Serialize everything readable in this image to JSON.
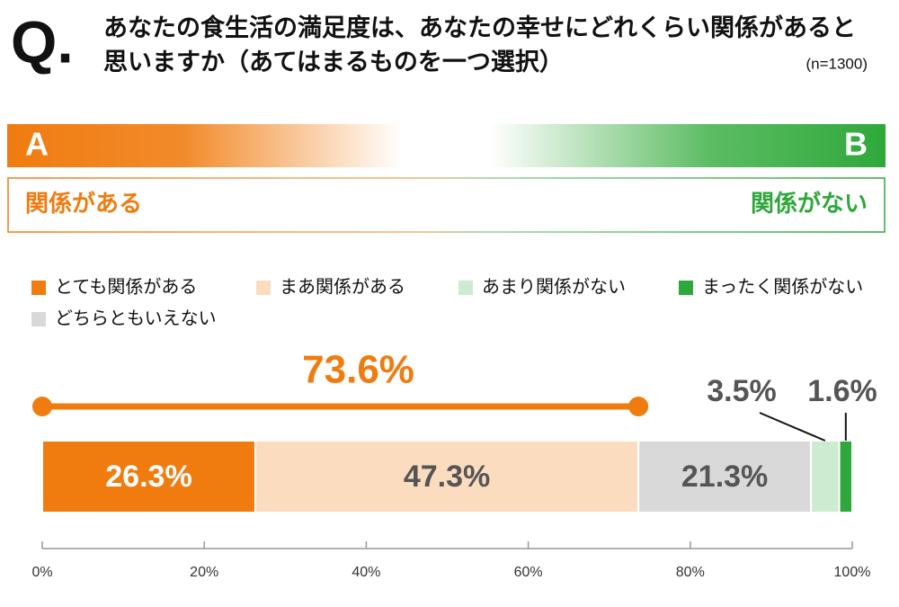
{
  "chart_data": {
    "type": "stacked-bar",
    "mark": "Q.",
    "title": "あなたの食生活の満足度は、あなたの幸せにどれくらい関係があると思いますか（あてはまるものを一つ選択）",
    "sample": "(n=1300)",
    "scale": {
      "left": "A",
      "right": "B",
      "left_label": "関係がある",
      "right_label": "関係がない"
    },
    "series": [
      {
        "name": "とても関係がある",
        "color": "#f07c10",
        "values": [
          26.3
        ],
        "value_labels": [
          "26.3%"
        ]
      },
      {
        "name": "まあ関係がある",
        "color": "#fcdcbf",
        "values": [
          47.3
        ],
        "value_labels": [
          "47.3%"
        ]
      },
      {
        "name": "どちらともいえない",
        "color": "#d9d9d9",
        "values": [
          21.3
        ],
        "value_labels": [
          "21.3%"
        ]
      },
      {
        "name": "あまり関係がない",
        "color": "#cdebd0",
        "values": [
          3.5
        ],
        "value_labels": [
          "3.5%"
        ]
      },
      {
        "name": "まったく関係がない",
        "color": "#2ea83a",
        "values": [
          1.6
        ],
        "value_labels": [
          "1.6%"
        ]
      }
    ],
    "bracket": {
      "value": 73.6,
      "label": "73.6%"
    },
    "xlim": [
      0,
      100
    ],
    "xticks": [
      {
        "value": 0,
        "label": "0%"
      },
      {
        "value": 20,
        "label": "20%"
      },
      {
        "value": 40,
        "label": "40%"
      },
      {
        "value": 60,
        "label": "60%"
      },
      {
        "value": 80,
        "label": "80%"
      },
      {
        "value": 100,
        "label": "100%"
      }
    ]
  }
}
